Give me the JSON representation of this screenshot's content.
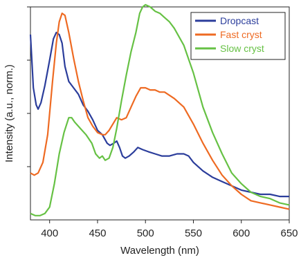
{
  "chart_data": {
    "type": "line",
    "title": "",
    "xlabel": "Wavelength (nm)",
    "ylabel": "Intensity (a.u., norm.)",
    "xlim": [
      380,
      650
    ],
    "ylim": [
      0,
      1
    ],
    "xticks": [
      400,
      450,
      500,
      550,
      600,
      650
    ],
    "x_tick_labels": [
      "400",
      "450",
      "500",
      "550",
      "600",
      "650"
    ],
    "yticks": [
      0.25,
      0.5,
      0.75,
      1.0
    ],
    "y_tick_labels_shown": false,
    "grid": false,
    "legend": "top-right",
    "series": [
      {
        "name": "Dropcast",
        "color": "#2b3d9b",
        "points": [
          [
            380,
            0.87
          ],
          [
            383,
            0.62
          ],
          [
            386,
            0.54
          ],
          [
            388,
            0.52
          ],
          [
            391,
            0.55
          ],
          [
            395,
            0.63
          ],
          [
            400,
            0.75
          ],
          [
            404,
            0.85
          ],
          [
            407,
            0.88
          ],
          [
            410,
            0.87
          ],
          [
            413,
            0.83
          ],
          [
            416,
            0.72
          ],
          [
            420,
            0.65
          ],
          [
            425,
            0.62
          ],
          [
            430,
            0.59
          ],
          [
            435,
            0.54
          ],
          [
            440,
            0.51
          ],
          [
            445,
            0.47
          ],
          [
            450,
            0.42
          ],
          [
            455,
            0.4
          ],
          [
            460,
            0.36
          ],
          [
            463,
            0.35
          ],
          [
            467,
            0.36
          ],
          [
            470,
            0.37
          ],
          [
            473,
            0.34
          ],
          [
            476,
            0.3
          ],
          [
            479,
            0.29
          ],
          [
            483,
            0.3
          ],
          [
            488,
            0.32
          ],
          [
            492,
            0.34
          ],
          [
            497,
            0.33
          ],
          [
            503,
            0.32
          ],
          [
            510,
            0.31
          ],
          [
            517,
            0.3
          ],
          [
            525,
            0.3
          ],
          [
            533,
            0.31
          ],
          [
            540,
            0.31
          ],
          [
            545,
            0.3
          ],
          [
            550,
            0.27
          ],
          [
            560,
            0.23
          ],
          [
            570,
            0.2
          ],
          [
            580,
            0.18
          ],
          [
            590,
            0.16
          ],
          [
            600,
            0.14
          ],
          [
            610,
            0.13
          ],
          [
            620,
            0.12
          ],
          [
            630,
            0.12
          ],
          [
            640,
            0.11
          ],
          [
            650,
            0.11
          ]
        ]
      },
      {
        "name": "Fast cryst",
        "color": "#ee6a22",
        "points": [
          [
            380,
            0.22
          ],
          [
            384,
            0.21
          ],
          [
            388,
            0.22
          ],
          [
            393,
            0.27
          ],
          [
            398,
            0.4
          ],
          [
            403,
            0.65
          ],
          [
            407,
            0.83
          ],
          [
            410,
            0.93
          ],
          [
            413,
            0.97
          ],
          [
            416,
            0.96
          ],
          [
            420,
            0.88
          ],
          [
            425,
            0.76
          ],
          [
            430,
            0.65
          ],
          [
            435,
            0.56
          ],
          [
            440,
            0.48
          ],
          [
            445,
            0.44
          ],
          [
            450,
            0.41
          ],
          [
            455,
            0.4
          ],
          [
            458,
            0.4
          ],
          [
            462,
            0.42
          ],
          [
            466,
            0.45
          ],
          [
            470,
            0.48
          ],
          [
            475,
            0.47
          ],
          [
            480,
            0.48
          ],
          [
            485,
            0.53
          ],
          [
            490,
            0.58
          ],
          [
            495,
            0.62
          ],
          [
            500,
            0.62
          ],
          [
            505,
            0.61
          ],
          [
            510,
            0.61
          ],
          [
            515,
            0.6
          ],
          [
            520,
            0.6
          ],
          [
            530,
            0.57
          ],
          [
            540,
            0.53
          ],
          [
            550,
            0.45
          ],
          [
            560,
            0.36
          ],
          [
            570,
            0.28
          ],
          [
            580,
            0.21
          ],
          [
            590,
            0.16
          ],
          [
            600,
            0.12
          ],
          [
            610,
            0.09
          ],
          [
            620,
            0.08
          ],
          [
            630,
            0.07
          ],
          [
            640,
            0.06
          ],
          [
            650,
            0.05
          ]
        ]
      },
      {
        "name": "Slow cryst",
        "color": "#66c144",
        "points": [
          [
            380,
            0.03
          ],
          [
            385,
            0.02
          ],
          [
            390,
            0.02
          ],
          [
            395,
            0.03
          ],
          [
            400,
            0.06
          ],
          [
            405,
            0.17
          ],
          [
            410,
            0.31
          ],
          [
            415,
            0.41
          ],
          [
            420,
            0.48
          ],
          [
            423,
            0.48
          ],
          [
            426,
            0.46
          ],
          [
            432,
            0.43
          ],
          [
            438,
            0.4
          ],
          [
            444,
            0.36
          ],
          [
            448,
            0.31
          ],
          [
            452,
            0.29
          ],
          [
            455,
            0.3
          ],
          [
            458,
            0.28
          ],
          [
            462,
            0.29
          ],
          [
            466,
            0.34
          ],
          [
            470,
            0.43
          ],
          [
            475,
            0.56
          ],
          [
            480,
            0.68
          ],
          [
            485,
            0.79
          ],
          [
            490,
            0.88
          ],
          [
            494,
            0.97
          ],
          [
            497,
            1.0
          ],
          [
            500,
            1.01
          ],
          [
            505,
            1.0
          ],
          [
            510,
            0.98
          ],
          [
            515,
            0.97
          ],
          [
            520,
            0.95
          ],
          [
            525,
            0.93
          ],
          [
            530,
            0.9
          ],
          [
            540,
            0.82
          ],
          [
            550,
            0.69
          ],
          [
            560,
            0.53
          ],
          [
            570,
            0.41
          ],
          [
            580,
            0.31
          ],
          [
            590,
            0.22
          ],
          [
            600,
            0.17
          ],
          [
            610,
            0.13
          ],
          [
            620,
            0.11
          ],
          [
            630,
            0.1
          ],
          [
            640,
            0.08
          ],
          [
            650,
            0.07
          ]
        ]
      }
    ]
  }
}
